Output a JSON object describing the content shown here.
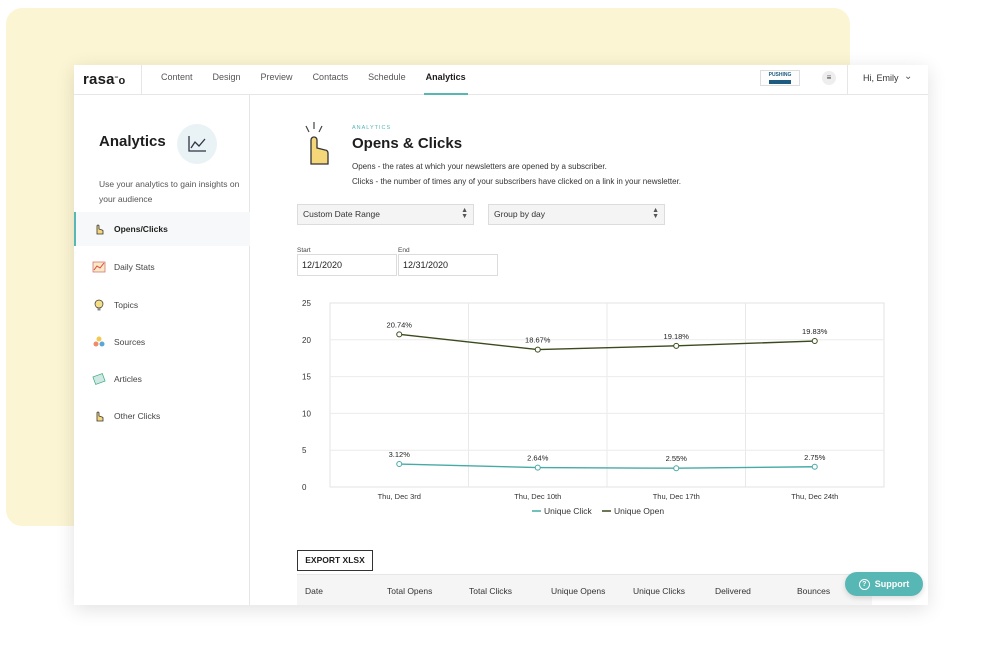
{
  "app": {
    "logo": "rasa",
    "nav": [
      "Content",
      "Design",
      "Preview",
      "Contacts",
      "Schedule",
      "Analytics"
    ],
    "active_nav": "Analytics",
    "brand_badge": "PUSHING",
    "user_greeting": "Hi, Emily"
  },
  "sidebar": {
    "title": "Analytics",
    "description": "Use your analytics to gain insights on your audience",
    "items": [
      {
        "label": "Opens/Clicks",
        "icon": "pointer-hand-icon",
        "active": true
      },
      {
        "label": "Daily Stats",
        "icon": "line-chart-icon",
        "active": false
      },
      {
        "label": "Topics",
        "icon": "lightbulb-icon",
        "active": false
      },
      {
        "label": "Sources",
        "icon": "sources-icon",
        "active": false
      },
      {
        "label": "Articles",
        "icon": "articles-icon",
        "active": false
      },
      {
        "label": "Other Clicks",
        "icon": "pointer-hand-icon",
        "active": false
      }
    ]
  },
  "header": {
    "label": "ANALYTICS",
    "title": "Opens & Clicks",
    "desc_opens": "Opens - the rates at which your newsletters are opened by a subscriber.",
    "desc_clicks": "Clicks - the number of times any of your subscribers have clicked on a link in your newsletter."
  },
  "filters": {
    "date_range": "Custom Date Range",
    "group_by": "Group by day",
    "start_label": "Start",
    "start_value": "12/1/2020",
    "end_label": "End",
    "end_value": "12/31/2020"
  },
  "chart_data": {
    "type": "line",
    "categories": [
      "Thu, Dec 3rd",
      "Thu, Dec 10th",
      "Thu, Dec 17th",
      "Thu, Dec 24th"
    ],
    "series": [
      {
        "name": "Unique Open",
        "values": [
          20.74,
          18.67,
          19.18,
          19.83
        ],
        "labels": [
          "20.74%",
          "18.67%",
          "19.18%",
          "19.83%"
        ],
        "color": "#3b4a1c"
      },
      {
        "name": "Unique Click",
        "values": [
          3.12,
          2.64,
          2.55,
          2.75
        ],
        "labels": [
          "3.12%",
          "2.64%",
          "2.55%",
          "2.75%"
        ],
        "color": "#46aaa7"
      }
    ],
    "ylim": [
      0,
      25
    ],
    "yticks": [
      "0",
      "5",
      "10",
      "15",
      "20",
      "25"
    ],
    "legend": "bottom",
    "grid": true
  },
  "table": {
    "export_label": "EXPORT XLSX",
    "headers": [
      "Date",
      "Total Opens",
      "Total Clicks",
      "Unique Opens",
      "Unique Clicks",
      "Delivered",
      "Bounces"
    ]
  },
  "support_label": "Support"
}
